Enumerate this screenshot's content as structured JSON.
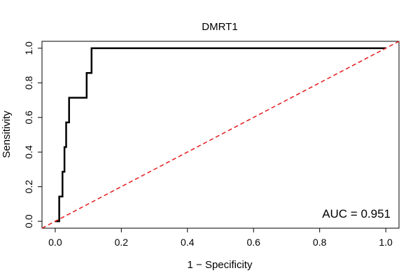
{
  "chart_data": {
    "type": "line",
    "title": "DMRT1",
    "xlabel": "1 − Specificity",
    "ylabel": "Sensitivity",
    "xlim": [
      -0.04,
      1.04
    ],
    "ylim": [
      -0.04,
      1.04
    ],
    "x_ticks": [
      0.0,
      0.2,
      0.4,
      0.6,
      0.8,
      1.0
    ],
    "y_ticks": [
      0.0,
      0.2,
      0.4,
      0.6,
      0.8,
      1.0
    ],
    "x_tick_labels": [
      "0.0",
      "0.2",
      "0.4",
      "0.6",
      "0.8",
      "1.0"
    ],
    "y_tick_labels": [
      "0.0",
      "0.2",
      "0.4",
      "0.6",
      "0.8",
      "1.0"
    ],
    "annotation": "AUC = 0.951",
    "grid": false,
    "series": [
      {
        "color": "#000000",
        "style": "solid",
        "x": [
          0.0,
          0.007,
          0.012,
          0.012,
          0.022,
          0.022,
          0.028,
          0.028,
          0.033,
          0.033,
          0.042,
          0.042,
          0.095,
          0.095,
          0.105,
          0.105,
          0.11,
          0.11,
          1.0
        ],
        "y": [
          0.0,
          0.0,
          0.0,
          0.143,
          0.143,
          0.286,
          0.286,
          0.429,
          0.429,
          0.571,
          0.571,
          0.714,
          0.714,
          0.857,
          0.857,
          0.857,
          0.857,
          1.0,
          1.0
        ]
      },
      {
        "color": "#e41a1c",
        "style": "dashed",
        "x": [
          -0.04,
          1.04
        ],
        "y": [
          -0.04,
          1.04
        ]
      }
    ]
  }
}
